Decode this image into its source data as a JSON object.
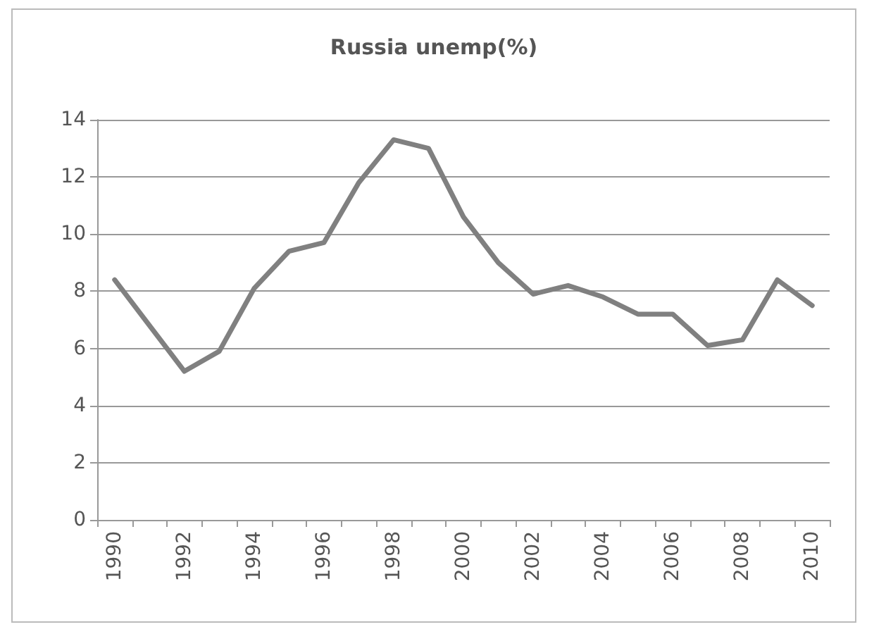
{
  "chart_data": {
    "type": "line",
    "title": "Russia unemp(%)",
    "categories": [
      "1990",
      null,
      "1992",
      null,
      "1994",
      null,
      "1996",
      null,
      "1998",
      null,
      "2000",
      null,
      "2002",
      null,
      "2004",
      null,
      "2006",
      null,
      "2008",
      null,
      "2010"
    ],
    "series": [
      {
        "color": "#808080",
        "values": [
          8.4,
          6.8,
          5.2,
          5.9,
          8.1,
          9.4,
          9.7,
          11.8,
          13.3,
          13.0,
          10.6,
          9.0,
          7.9,
          8.2,
          7.8,
          7.2,
          7.2,
          6.1,
          6.3,
          8.4,
          7.5
        ]
      }
    ],
    "ylim": [
      0,
      14
    ],
    "yticks": [
      0,
      2,
      4,
      6,
      8,
      10,
      12,
      14
    ],
    "grid": "y",
    "marker": "none",
    "line_style": "solid"
  }
}
